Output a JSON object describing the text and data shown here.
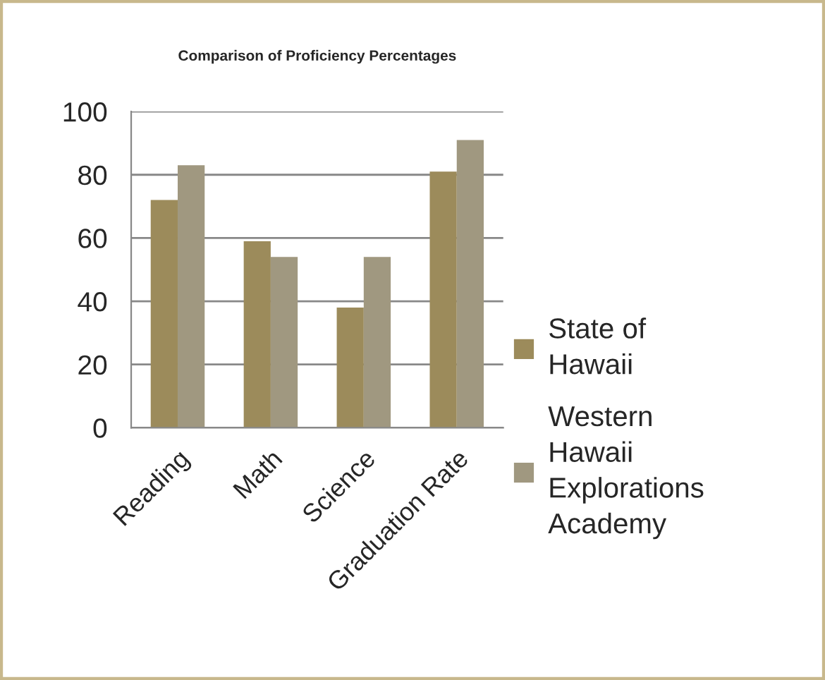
{
  "chart_data": {
    "type": "bar",
    "title": "Comparison of Proficiency Percentages",
    "categories": [
      "Reading",
      "Math",
      "Science",
      "Graduation Rate"
    ],
    "series": [
      {
        "name": "State of Hawaii",
        "color": "#9c8b5b",
        "values": [
          72,
          59,
          38,
          81
        ]
      },
      {
        "name": "Western Hawaii Explorations Academy",
        "color": "#a09880",
        "values": [
          83,
          54,
          54,
          91
        ]
      }
    ],
    "ylim": [
      0,
      100
    ],
    "yticks": [
      0,
      20,
      40,
      60,
      80,
      100
    ],
    "grid": "y",
    "legend": "right"
  }
}
